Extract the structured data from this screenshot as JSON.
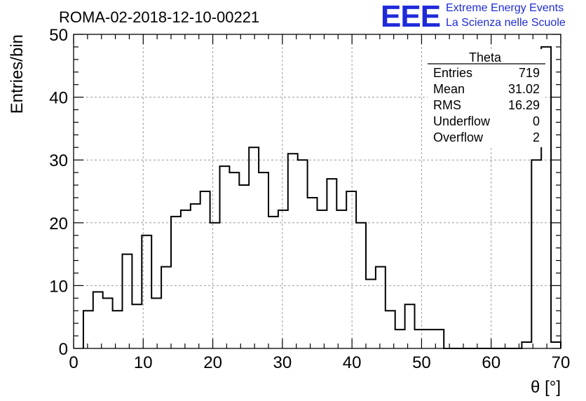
{
  "chart_data": {
    "type": "bar",
    "histogram": true,
    "title": "ROMA-02-2018-12-10-00221",
    "xlabel": "θ [°]",
    "ylabel": "Entries/bin",
    "xlim": [
      0,
      70
    ],
    "ylim": [
      0,
      50
    ],
    "bin_width": 1.4,
    "x_start": 1.4,
    "xticks": [
      "0",
      "10",
      "20",
      "30",
      "40",
      "50",
      "60",
      "70"
    ],
    "yticks": [
      "0",
      "10",
      "20",
      "30",
      "40",
      "50"
    ],
    "grid": true,
    "values": [
      6,
      9,
      8,
      6,
      15,
      7,
      18,
      8,
      13,
      21,
      22,
      23,
      25,
      20,
      29,
      28,
      26,
      32,
      28,
      21,
      22,
      31,
      30,
      24,
      22,
      27,
      22,
      25,
      20,
      11,
      13,
      6,
      3,
      7,
      3,
      3,
      3,
      0,
      0,
      0,
      0,
      0,
      0,
      0,
      0,
      1,
      30,
      48,
      1
    ],
    "stats_box": {
      "title": "Theta",
      "rows": [
        {
          "label": "Entries",
          "value": "719"
        },
        {
          "label": "Mean",
          "value": "31.02"
        },
        {
          "label": "RMS",
          "value": "16.29"
        },
        {
          "label": "Underflow",
          "value": "0"
        },
        {
          "label": "Overflow",
          "value": "2"
        }
      ]
    }
  },
  "logo": {
    "mark": "EEE",
    "line1": "Extreme Energy Events",
    "line2": "La Scienza nelle Scuole"
  },
  "colors": {
    "logo": "#1f2bd9",
    "line": "#000000",
    "grid": "#9a9a9a"
  }
}
